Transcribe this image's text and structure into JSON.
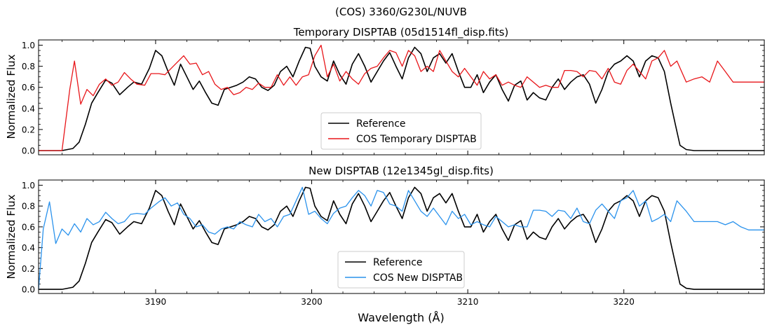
{
  "figure": {
    "suptitle": "(COS) 3360/G230L/NUVB",
    "xlabel": "Wavelength (Å)"
  },
  "colors": {
    "reference": "#000000",
    "temporary": "#e8161a",
    "new": "#2a92ec"
  },
  "chart_data": [
    {
      "type": "line",
      "title": "Temporary DISPTAB (05d1514fl_disp.fits)",
      "xlabel": "",
      "ylabel": "Normalized Flux",
      "xlim": [
        3182.5,
        3229
      ],
      "ylim": [
        -0.04,
        1.05
      ],
      "xticks": [
        3190,
        3200,
        3210,
        3220
      ],
      "xtick_labels_shown": false,
      "yticks": [
        0.0,
        0.2,
        0.4,
        0.6,
        0.8,
        1.0
      ],
      "ytick_labels": [
        "0.0",
        "0.2",
        "0.4",
        "0.6",
        "0.8",
        "1.0"
      ],
      "grid": false,
      "legend_position": "lower-center",
      "series": [
        {
          "name": "Reference",
          "color": "#000000",
          "x": [
            3182.5,
            3184.0,
            3184.7,
            3185.1,
            3185.5,
            3185.9,
            3186.3,
            3186.8,
            3187.2,
            3187.7,
            3188.2,
            3188.6,
            3189.1,
            3189.6,
            3190.0,
            3190.4,
            3190.8,
            3191.2,
            3191.6,
            3192.0,
            3192.4,
            3192.8,
            3193.2,
            3193.6,
            3194.0,
            3194.4,
            3194.8,
            3195.2,
            3195.6,
            3196.0,
            3196.4,
            3196.8,
            3197.2,
            3197.6,
            3198.0,
            3198.4,
            3198.8,
            3199.2,
            3199.6,
            3199.9,
            3200.2,
            3200.6,
            3201.0,
            3201.4,
            3201.8,
            3202.2,
            3202.6,
            3203.0,
            3203.4,
            3203.8,
            3204.2,
            3204.6,
            3205.0,
            3205.4,
            3205.8,
            3206.2,
            3206.6,
            3207.0,
            3207.4,
            3207.8,
            3208.2,
            3208.6,
            3209.0,
            3209.4,
            3209.8,
            3210.2,
            3210.6,
            3211.0,
            3211.4,
            3211.8,
            3212.2,
            3212.6,
            3213.0,
            3213.4,
            3213.8,
            3214.2,
            3214.6,
            3215.0,
            3215.4,
            3215.8,
            3216.2,
            3216.6,
            3217.0,
            3217.4,
            3217.8,
            3218.2,
            3218.6,
            3219.0,
            3219.4,
            3219.8,
            3220.2,
            3220.6,
            3221.0,
            3221.4,
            3221.8,
            3222.2,
            3222.6,
            3223.0,
            3223.3,
            3223.6,
            3224.0,
            3224.5,
            3225.0,
            3229.0
          ],
          "y": [
            0.0,
            0.0,
            0.02,
            0.08,
            0.25,
            0.45,
            0.55,
            0.67,
            0.64,
            0.53,
            0.6,
            0.65,
            0.63,
            0.78,
            0.95,
            0.9,
            0.75,
            0.62,
            0.82,
            0.7,
            0.58,
            0.66,
            0.55,
            0.45,
            0.43,
            0.58,
            0.6,
            0.62,
            0.65,
            0.7,
            0.68,
            0.6,
            0.57,
            0.62,
            0.75,
            0.8,
            0.7,
            0.85,
            0.98,
            0.97,
            0.8,
            0.7,
            0.66,
            0.85,
            0.72,
            0.63,
            0.82,
            0.92,
            0.8,
            0.65,
            0.75,
            0.85,
            0.93,
            0.8,
            0.68,
            0.88,
            0.98,
            0.92,
            0.75,
            0.88,
            0.92,
            0.83,
            0.92,
            0.75,
            0.6,
            0.6,
            0.72,
            0.55,
            0.65,
            0.72,
            0.58,
            0.47,
            0.62,
            0.66,
            0.48,
            0.55,
            0.5,
            0.48,
            0.6,
            0.68,
            0.58,
            0.65,
            0.7,
            0.72,
            0.63,
            0.45,
            0.58,
            0.75,
            0.82,
            0.85,
            0.9,
            0.85,
            0.7,
            0.85,
            0.9,
            0.88,
            0.75,
            0.45,
            0.25,
            0.05,
            0.01,
            0.0,
            0.0,
            0.0
          ]
        },
        {
          "name": "COS Temporary DISPTAB",
          "color": "#e8161a",
          "x": [
            3182.5,
            3184.0,
            3184.5,
            3184.8,
            3185.2,
            3185.6,
            3186.0,
            3186.4,
            3186.8,
            3187.2,
            3187.6,
            3188.0,
            3188.4,
            3188.8,
            3189.3,
            3189.7,
            3190.2,
            3190.6,
            3191.0,
            3191.4,
            3191.8,
            3192.2,
            3192.6,
            3193.0,
            3193.4,
            3193.8,
            3194.2,
            3194.6,
            3195.0,
            3195.4,
            3195.8,
            3196.2,
            3196.6,
            3197.0,
            3197.4,
            3197.8,
            3198.2,
            3198.6,
            3199.0,
            3199.4,
            3199.8,
            3200.2,
            3200.6,
            3201.0,
            3201.4,
            3201.8,
            3202.2,
            3202.6,
            3203.0,
            3203.4,
            3203.8,
            3204.2,
            3204.6,
            3205.0,
            3205.4,
            3205.8,
            3206.2,
            3206.6,
            3207.0,
            3207.4,
            3207.8,
            3208.2,
            3208.6,
            3209.0,
            3209.4,
            3209.8,
            3210.2,
            3210.6,
            3211.0,
            3211.4,
            3211.8,
            3212.2,
            3212.6,
            3213.0,
            3213.4,
            3213.8,
            3214.2,
            3214.6,
            3215.0,
            3215.4,
            3215.8,
            3216.2,
            3216.6,
            3217.0,
            3217.4,
            3217.8,
            3218.2,
            3218.6,
            3219.0,
            3219.4,
            3219.8,
            3220.2,
            3220.6,
            3221.0,
            3221.4,
            3221.8,
            3222.2,
            3222.6,
            3223.0,
            3223.4,
            3224.0,
            3224.5,
            3225.0,
            3225.5,
            3226.0,
            3226.5,
            3227.0,
            3227.5,
            3228.0,
            3229.0
          ],
          "y": [
            0.0,
            0.0,
            0.58,
            0.85,
            0.44,
            0.58,
            0.52,
            0.63,
            0.68,
            0.62,
            0.65,
            0.74,
            0.68,
            0.63,
            0.62,
            0.73,
            0.73,
            0.72,
            0.78,
            0.84,
            0.9,
            0.82,
            0.83,
            0.72,
            0.75,
            0.63,
            0.58,
            0.6,
            0.53,
            0.55,
            0.6,
            0.58,
            0.64,
            0.6,
            0.6,
            0.72,
            0.62,
            0.7,
            0.62,
            0.7,
            0.72,
            0.9,
            1.0,
            0.7,
            0.82,
            0.66,
            0.75,
            0.68,
            0.63,
            0.73,
            0.78,
            0.8,
            0.88,
            0.95,
            0.93,
            0.8,
            0.95,
            0.9,
            0.75,
            0.8,
            0.75,
            0.95,
            0.85,
            0.75,
            0.7,
            0.78,
            0.7,
            0.62,
            0.75,
            0.68,
            0.72,
            0.62,
            0.65,
            0.62,
            0.6,
            0.7,
            0.65,
            0.6,
            0.62,
            0.6,
            0.6,
            0.76,
            0.76,
            0.75,
            0.7,
            0.76,
            0.75,
            0.68,
            0.78,
            0.65,
            0.63,
            0.76,
            0.82,
            0.75,
            0.68,
            0.85,
            0.88,
            0.95,
            0.8,
            0.85,
            0.65,
            0.68,
            0.7,
            0.65,
            0.85,
            0.75,
            0.65,
            0.65,
            0.65,
            0.65
          ]
        }
      ]
    },
    {
      "type": "line",
      "title": "New DISPTAB (12e1345gl_disp.fits)",
      "xlabel": "Wavelength (Å)",
      "ylabel": "Normalized Flux",
      "xlim": [
        3182.5,
        3229
      ],
      "ylim": [
        -0.04,
        1.05
      ],
      "xticks": [
        3190,
        3200,
        3210,
        3220
      ],
      "xtick_labels": [
        "3190",
        "3200",
        "3210",
        "3220"
      ],
      "yticks": [
        0.0,
        0.2,
        0.4,
        0.6,
        0.8,
        1.0
      ],
      "ytick_labels": [
        "0.0",
        "0.2",
        "0.4",
        "0.6",
        "0.8",
        "1.0"
      ],
      "grid": false,
      "legend_position": "lower-center",
      "series": [
        {
          "name": "Reference",
          "color": "#000000",
          "x": [
            3182.5,
            3184.0,
            3184.7,
            3185.1,
            3185.5,
            3185.9,
            3186.3,
            3186.8,
            3187.2,
            3187.7,
            3188.2,
            3188.6,
            3189.1,
            3189.6,
            3190.0,
            3190.4,
            3190.8,
            3191.2,
            3191.6,
            3192.0,
            3192.4,
            3192.8,
            3193.2,
            3193.6,
            3194.0,
            3194.4,
            3194.8,
            3195.2,
            3195.6,
            3196.0,
            3196.4,
            3196.8,
            3197.2,
            3197.6,
            3198.0,
            3198.4,
            3198.8,
            3199.2,
            3199.6,
            3199.9,
            3200.2,
            3200.6,
            3201.0,
            3201.4,
            3201.8,
            3202.2,
            3202.6,
            3203.0,
            3203.4,
            3203.8,
            3204.2,
            3204.6,
            3205.0,
            3205.4,
            3205.8,
            3206.2,
            3206.6,
            3207.0,
            3207.4,
            3207.8,
            3208.2,
            3208.6,
            3209.0,
            3209.4,
            3209.8,
            3210.2,
            3210.6,
            3211.0,
            3211.4,
            3211.8,
            3212.2,
            3212.6,
            3213.0,
            3213.4,
            3213.8,
            3214.2,
            3214.6,
            3215.0,
            3215.4,
            3215.8,
            3216.2,
            3216.6,
            3217.0,
            3217.4,
            3217.8,
            3218.2,
            3218.6,
            3219.0,
            3219.4,
            3219.8,
            3220.2,
            3220.6,
            3221.0,
            3221.4,
            3221.8,
            3222.2,
            3222.6,
            3223.0,
            3223.3,
            3223.6,
            3224.0,
            3224.5,
            3225.0,
            3229.0
          ],
          "y": [
            0.0,
            0.0,
            0.02,
            0.08,
            0.25,
            0.45,
            0.55,
            0.67,
            0.64,
            0.53,
            0.6,
            0.65,
            0.63,
            0.78,
            0.95,
            0.9,
            0.75,
            0.62,
            0.82,
            0.7,
            0.58,
            0.66,
            0.55,
            0.45,
            0.43,
            0.58,
            0.6,
            0.62,
            0.65,
            0.7,
            0.68,
            0.6,
            0.57,
            0.62,
            0.75,
            0.8,
            0.7,
            0.85,
            0.98,
            0.97,
            0.8,
            0.7,
            0.66,
            0.85,
            0.72,
            0.63,
            0.82,
            0.92,
            0.8,
            0.65,
            0.75,
            0.85,
            0.93,
            0.8,
            0.68,
            0.88,
            0.98,
            0.92,
            0.75,
            0.88,
            0.92,
            0.83,
            0.92,
            0.75,
            0.6,
            0.6,
            0.72,
            0.55,
            0.65,
            0.72,
            0.58,
            0.47,
            0.62,
            0.66,
            0.48,
            0.55,
            0.5,
            0.48,
            0.6,
            0.68,
            0.58,
            0.65,
            0.7,
            0.72,
            0.63,
            0.45,
            0.58,
            0.75,
            0.82,
            0.85,
            0.9,
            0.85,
            0.7,
            0.85,
            0.9,
            0.88,
            0.75,
            0.45,
            0.25,
            0.05,
            0.01,
            0.0,
            0.0,
            0.0
          ]
        },
        {
          "name": "COS New DISPTAB",
          "color": "#2a92ec",
          "x": [
            3182.5,
            3182.8,
            3183.2,
            3183.6,
            3184.0,
            3184.4,
            3184.8,
            3185.2,
            3185.6,
            3186.0,
            3186.4,
            3186.8,
            3187.2,
            3187.6,
            3188.0,
            3188.4,
            3188.8,
            3189.3,
            3189.7,
            3190.2,
            3190.6,
            3191.0,
            3191.4,
            3191.8,
            3192.2,
            3192.6,
            3193.0,
            3193.4,
            3193.8,
            3194.2,
            3194.6,
            3195.0,
            3195.4,
            3195.8,
            3196.2,
            3196.6,
            3197.0,
            3197.4,
            3197.8,
            3198.2,
            3198.6,
            3199.0,
            3199.4,
            3199.8,
            3200.2,
            3200.6,
            3201.0,
            3201.4,
            3201.8,
            3202.2,
            3202.6,
            3203.0,
            3203.4,
            3203.8,
            3204.2,
            3204.6,
            3205.0,
            3205.4,
            3205.8,
            3206.2,
            3206.6,
            3207.0,
            3207.4,
            3207.8,
            3208.2,
            3208.6,
            3209.0,
            3209.4,
            3209.8,
            3210.2,
            3210.6,
            3211.0,
            3211.4,
            3211.8,
            3212.2,
            3212.6,
            3213.0,
            3213.4,
            3213.8,
            3214.2,
            3214.6,
            3215.0,
            3215.4,
            3215.8,
            3216.2,
            3216.6,
            3217.0,
            3217.4,
            3217.8,
            3218.2,
            3218.6,
            3219.0,
            3219.4,
            3219.8,
            3220.2,
            3220.6,
            3221.0,
            3221.4,
            3221.8,
            3222.2,
            3222.6,
            3223.0,
            3223.4,
            3224.0,
            3224.5,
            3225.0,
            3225.5,
            3226.0,
            3226.5,
            3227.0,
            3227.5,
            3228.0,
            3228.5,
            3229.0
          ],
          "y": [
            0.0,
            0.58,
            0.84,
            0.44,
            0.58,
            0.52,
            0.63,
            0.55,
            0.68,
            0.62,
            0.65,
            0.74,
            0.68,
            0.63,
            0.65,
            0.72,
            0.73,
            0.72,
            0.78,
            0.84,
            0.88,
            0.8,
            0.83,
            0.72,
            0.68,
            0.6,
            0.62,
            0.55,
            0.53,
            0.58,
            0.6,
            0.58,
            0.65,
            0.62,
            0.6,
            0.72,
            0.65,
            0.68,
            0.6,
            0.7,
            0.72,
            0.85,
            0.98,
            0.72,
            0.75,
            0.68,
            0.63,
            0.73,
            0.78,
            0.8,
            0.88,
            0.95,
            0.9,
            0.8,
            0.95,
            0.93,
            0.82,
            0.8,
            0.75,
            0.95,
            0.85,
            0.75,
            0.7,
            0.78,
            0.7,
            0.62,
            0.75,
            0.68,
            0.72,
            0.62,
            0.65,
            0.62,
            0.6,
            0.7,
            0.65,
            0.6,
            0.62,
            0.6,
            0.6,
            0.76,
            0.76,
            0.75,
            0.7,
            0.76,
            0.75,
            0.68,
            0.78,
            0.65,
            0.63,
            0.76,
            0.82,
            0.75,
            0.68,
            0.85,
            0.88,
            0.95,
            0.8,
            0.85,
            0.65,
            0.68,
            0.72,
            0.65,
            0.85,
            0.75,
            0.65,
            0.65,
            0.65,
            0.65,
            0.62,
            0.65,
            0.6,
            0.57,
            0.57,
            0.57
          ]
        }
      ]
    }
  ]
}
